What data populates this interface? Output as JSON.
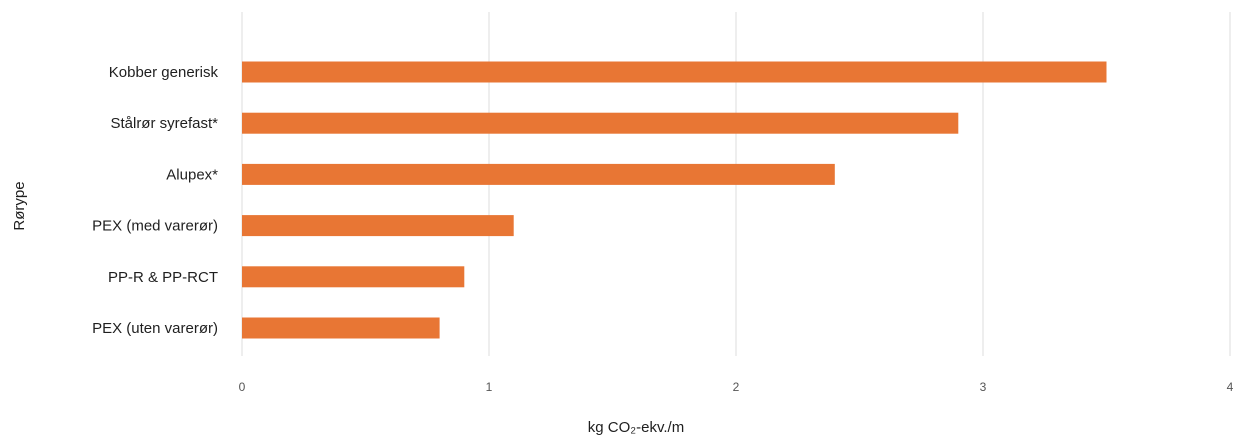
{
  "colors": {
    "bar": "#e87634",
    "grid": "#dcdcdc"
  },
  "chart_data": {
    "type": "bar",
    "orientation": "horizontal",
    "categories": [
      "Kobber generisk",
      "Stålrør syrefast*",
      "Alupex*",
      "PEX (med varerør)",
      "PP-R & PP-RCT",
      "PEX (uten varerør)"
    ],
    "values": [
      3.5,
      2.9,
      2.4,
      1.1,
      0.9,
      0.8
    ],
    "xlabel": "kg CO₂-ekv./m",
    "ylabel": "Rørype",
    "xlim": [
      0,
      4
    ],
    "xticks": [
      "0",
      "1",
      "2",
      "3",
      "4"
    ],
    "grid": "vertical",
    "legend": "none"
  }
}
